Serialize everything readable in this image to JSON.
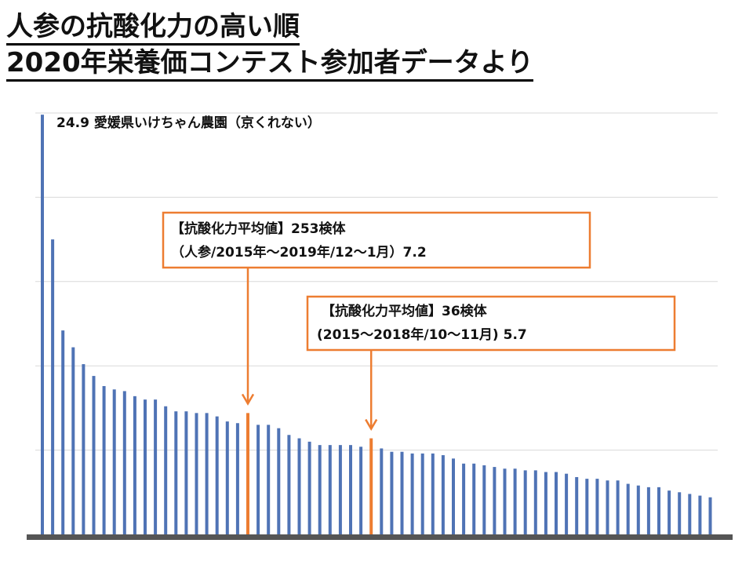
{
  "page": {
    "title_line1": "人参の抗酸化力の高い順",
    "title_line2": "2020年栄養価コンテスト参加者データより"
  },
  "chart_data": {
    "type": "bar",
    "xlabel": "",
    "ylabel": "",
    "ylim": [
      0,
      25
    ],
    "grid": true,
    "max_label": "24.9 愛媛県いけちゃん農園（京くれない）",
    "values": [
      24.9,
      17.5,
      12.1,
      11.1,
      10.1,
      9.4,
      8.8,
      8.6,
      8.5,
      8.2,
      8.0,
      8.0,
      7.6,
      7.3,
      7.3,
      7.2,
      7.2,
      7.0,
      6.7,
      6.6,
      7.2,
      6.5,
      6.5,
      6.3,
      5.9,
      5.7,
      5.5,
      5.3,
      5.3,
      5.3,
      5.3,
      5.2,
      5.7,
      5.1,
      4.9,
      4.9,
      4.8,
      4.8,
      4.8,
      4.7,
      4.5,
      4.2,
      4.2,
      4.1,
      4.0,
      3.9,
      3.9,
      3.8,
      3.8,
      3.7,
      3.7,
      3.6,
      3.4,
      3.3,
      3.3,
      3.2,
      3.2,
      3.0,
      2.9,
      2.8,
      2.8,
      2.6,
      2.5,
      2.4,
      2.3,
      2.2
    ],
    "highlight_colors": {
      "bar": "#4f73b5",
      "average": "#ed7d31"
    },
    "annotations": [
      {
        "name": "average-253",
        "line1": "【抗酸化力平均値】253検体",
        "line2": "（人参/2015年～2019年/12～1月）7.2",
        "value": 7.2,
        "bar_index": 20
      },
      {
        "name": "average-36",
        "line1": "【抗酸化力平均値】36検体",
        "line2": "(2015～2018年/10～11月) 5.7",
        "value": 5.7,
        "bar_index": 32
      }
    ]
  }
}
